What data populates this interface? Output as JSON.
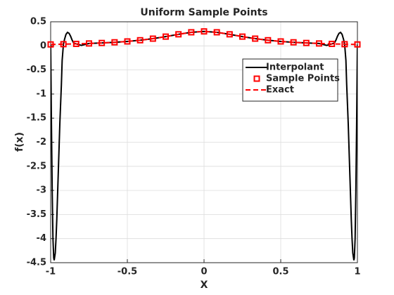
{
  "chart_data": {
    "type": "line",
    "title": "Uniform Sample Points",
    "xlabel": "X",
    "ylabel": "f(x)",
    "xlim": [
      -1,
      1
    ],
    "ylim": [
      -4.5,
      0.5
    ],
    "xticks": [
      -1,
      -0.5,
      0,
      0.5,
      1
    ],
    "yticks": [
      0.5,
      0,
      -0.5,
      -1,
      -1.5,
      -2,
      -2.5,
      -3,
      -3.5,
      -4,
      -4.5
    ],
    "grid": true,
    "legend": "northeast",
    "series": [
      {
        "name": "Interpolant",
        "color": "#000000",
        "linestyle": "solid",
        "marker": "none",
        "x": [
          -1,
          -0.995,
          -0.99,
          -0.985,
          -0.98,
          -0.977,
          -0.97,
          -0.965,
          -0.96,
          -0.95,
          -0.94,
          -0.93,
          -0.925,
          -0.9167,
          -0.91,
          -0.9,
          -0.89,
          -0.88,
          -0.87,
          -0.86,
          -0.85,
          -0.8333,
          -0.8,
          -0.75,
          -0.6667,
          -0.5833,
          -0.5,
          -0.4167,
          -0.3333,
          -0.25,
          -0.1667,
          -0.0833,
          0,
          0.0833,
          0.1667,
          0.25,
          0.3333,
          0.4167,
          0.5,
          0.5833,
          0.6667,
          0.75,
          0.8,
          0.8333,
          0.85,
          0.86,
          0.87,
          0.88,
          0.89,
          0.9,
          0.91,
          0.9167,
          0.925,
          0.93,
          0.94,
          0.95,
          0.96,
          0.965,
          0.97,
          0.977,
          0.98,
          0.985,
          0.99,
          0.995,
          1
        ],
        "values": [
          0.03,
          -1.6,
          -3.0,
          -4.0,
          -4.4,
          -4.45,
          -4.3,
          -4.0,
          -3.6,
          -2.6,
          -1.6,
          -0.8,
          -0.3,
          0.035,
          0.13,
          0.24,
          0.28,
          0.26,
          0.2,
          0.12,
          0.06,
          0.041,
          0.01,
          0.05,
          0.06,
          0.074,
          0.092,
          0.117,
          0.15,
          0.192,
          0.24,
          0.282,
          0.3,
          0.282,
          0.24,
          0.192,
          0.15,
          0.117,
          0.092,
          0.074,
          0.06,
          0.05,
          0.01,
          0.041,
          0.06,
          0.12,
          0.2,
          0.26,
          0.28,
          0.24,
          0.13,
          0.035,
          -0.3,
          -0.8,
          -1.6,
          -2.6,
          -3.6,
          -4.0,
          -4.3,
          -4.45,
          -4.4,
          -4.0,
          -3.0,
          -1.6,
          0.03
        ]
      },
      {
        "name": "Sample Points",
        "color": "#ff0000",
        "linestyle": "none",
        "marker": "square",
        "x": [
          -1,
          -0.9167,
          -0.8333,
          -0.75,
          -0.6667,
          -0.5833,
          -0.5,
          -0.4167,
          -0.3333,
          -0.25,
          -0.1667,
          -0.0833,
          0,
          0.0833,
          0.1667,
          0.25,
          0.3333,
          0.4167,
          0.5,
          0.5833,
          0.6667,
          0.75,
          0.8333,
          0.9167,
          1
        ],
        "values": [
          0.03,
          0.035,
          0.041,
          0.05,
          0.06,
          0.074,
          0.092,
          0.117,
          0.15,
          0.192,
          0.24,
          0.282,
          0.3,
          0.282,
          0.24,
          0.192,
          0.15,
          0.117,
          0.092,
          0.074,
          0.06,
          0.05,
          0.041,
          0.035,
          0.03
        ]
      },
      {
        "name": "Exact",
        "color": "#ff0000",
        "linestyle": "dashed",
        "marker": "none",
        "x": [
          -1,
          -0.9167,
          -0.8333,
          -0.75,
          -0.6667,
          -0.5833,
          -0.5,
          -0.4167,
          -0.3333,
          -0.25,
          -0.1667,
          -0.0833,
          0,
          0.0833,
          0.1667,
          0.25,
          0.3333,
          0.4167,
          0.5,
          0.5833,
          0.6667,
          0.75,
          0.8333,
          0.9167,
          1
        ],
        "values": [
          0.03,
          0.035,
          0.041,
          0.05,
          0.06,
          0.074,
          0.092,
          0.117,
          0.15,
          0.192,
          0.24,
          0.282,
          0.3,
          0.282,
          0.24,
          0.192,
          0.15,
          0.117,
          0.092,
          0.074,
          0.06,
          0.05,
          0.041,
          0.035,
          0.03
        ]
      }
    ]
  }
}
